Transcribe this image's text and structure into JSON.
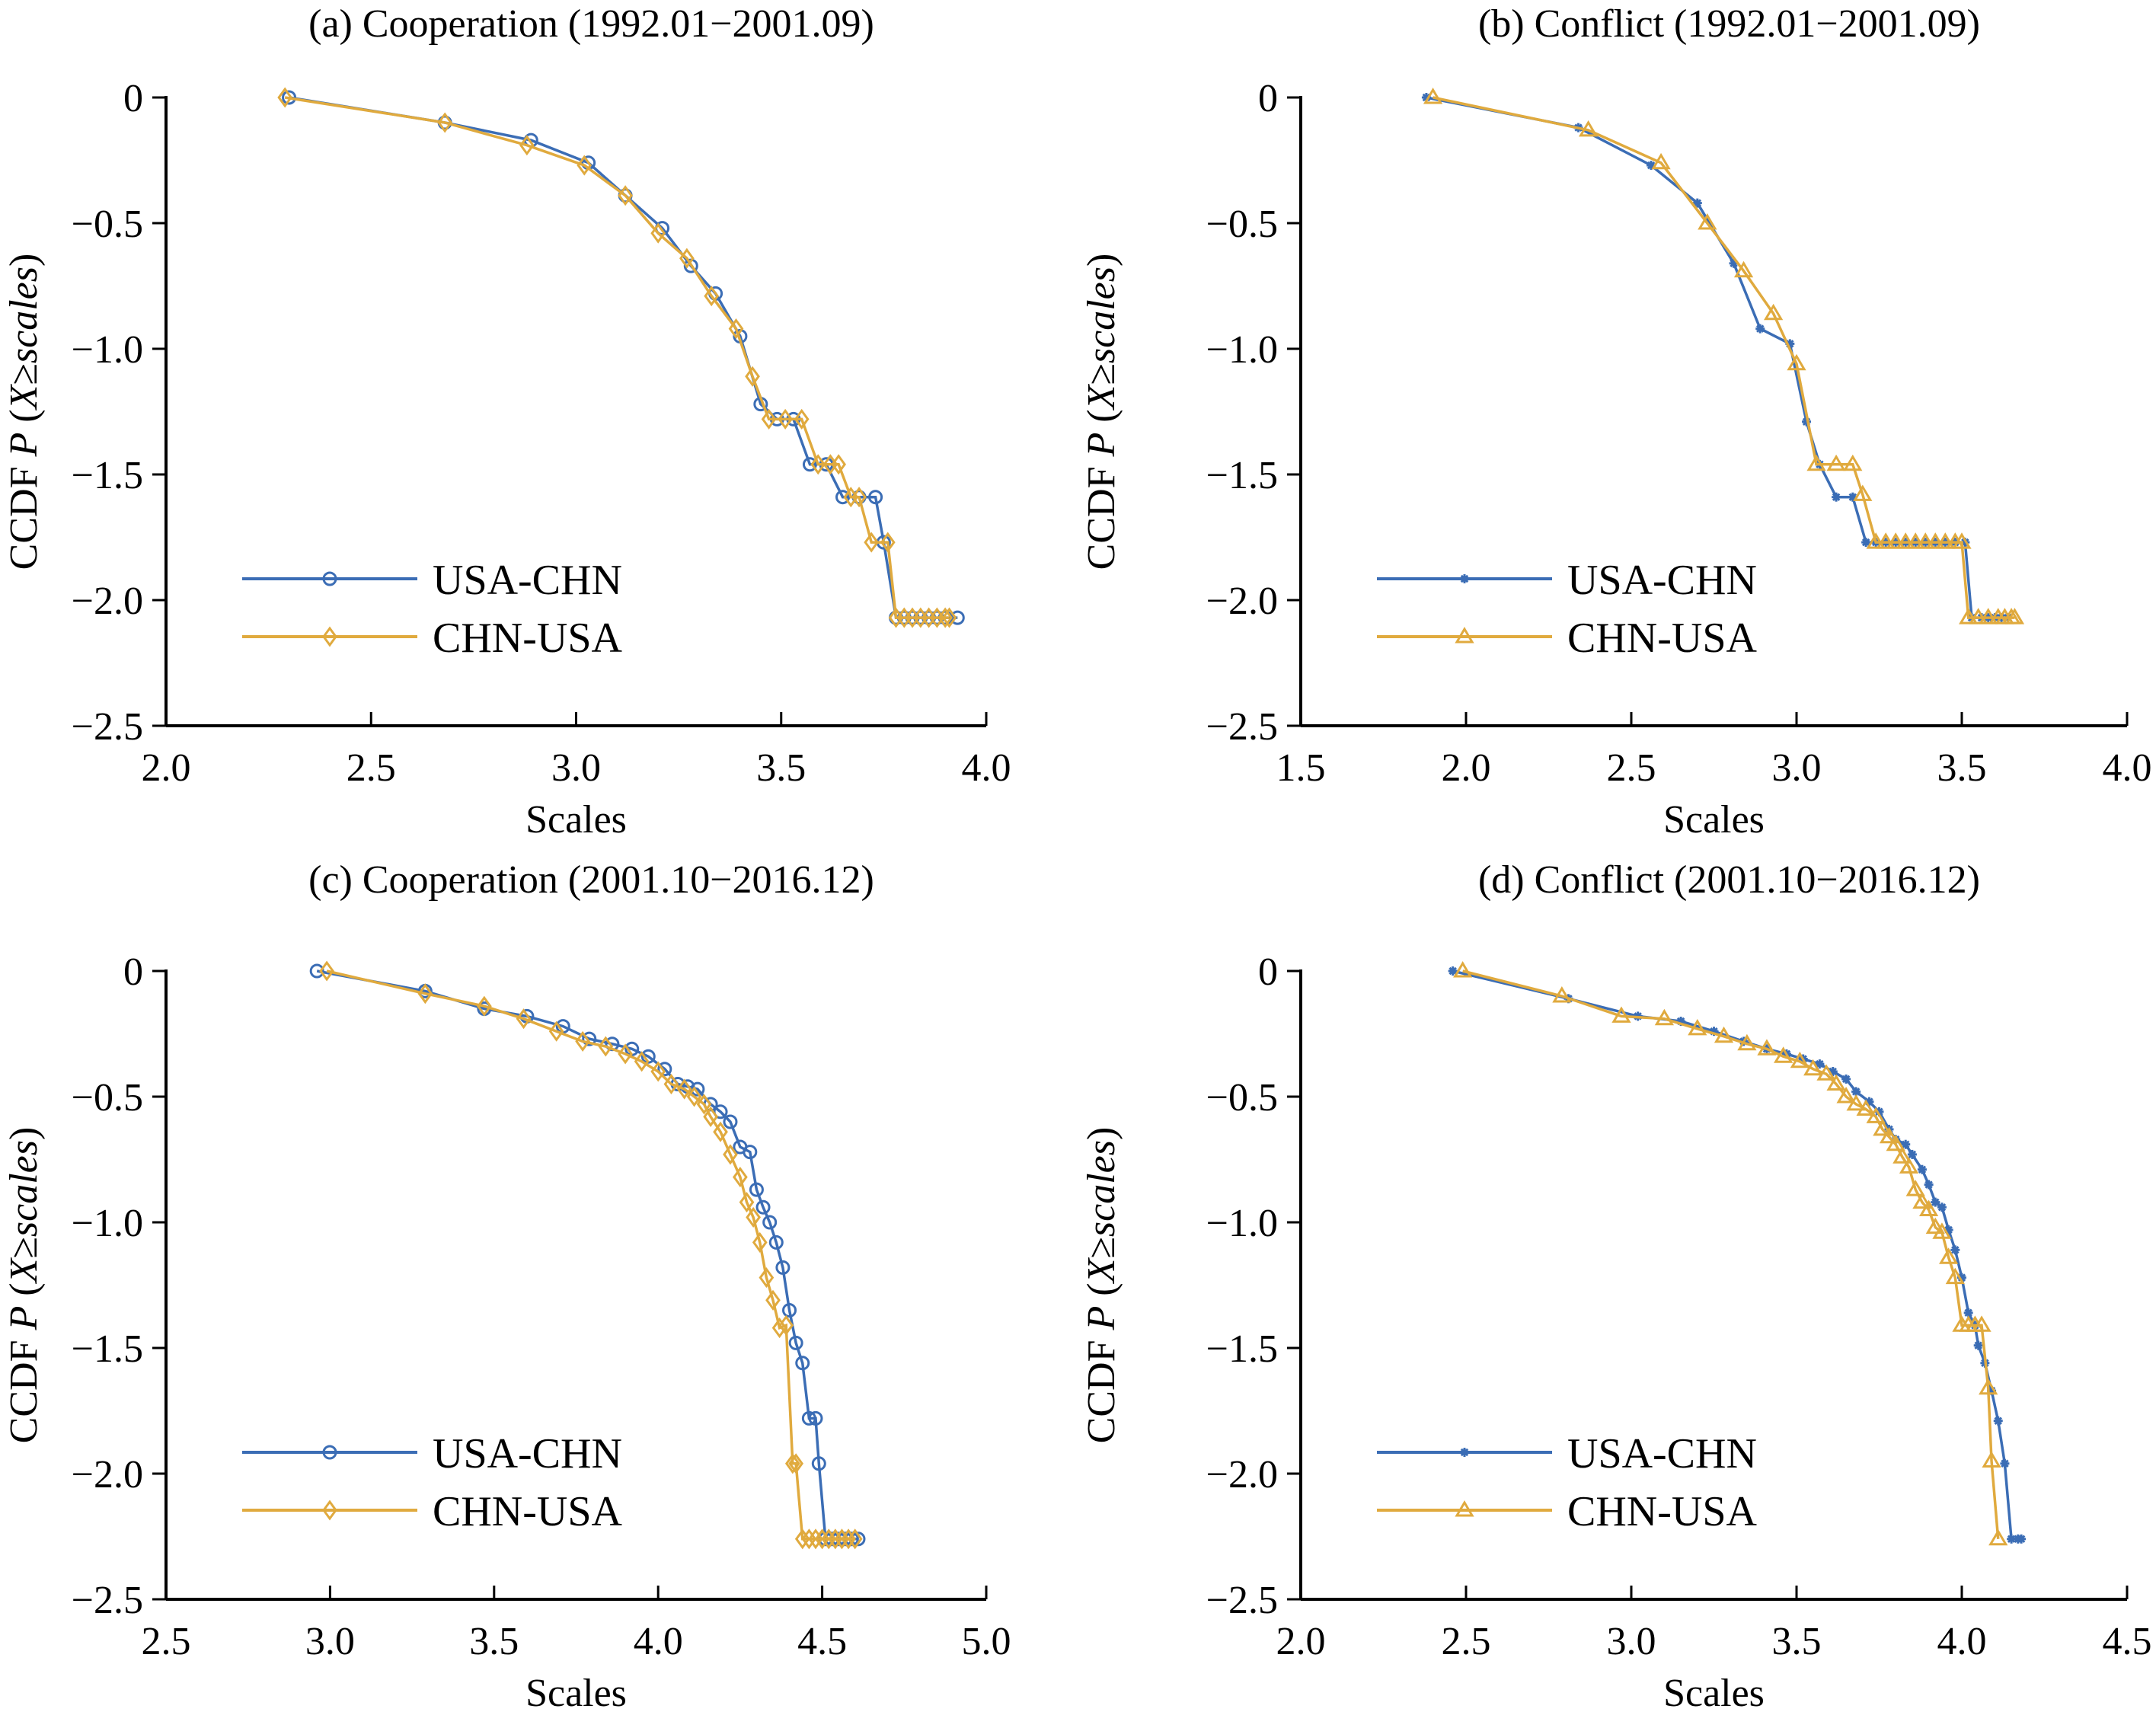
{
  "chart_data": [
    {
      "type": "line",
      "panel": "a",
      "title": "(a) Cooperation (1992.01−2001.09)",
      "xlabel": "Scales",
      "ylabel": "CCDF P (X≥scales)",
      "xlim": [
        2.0,
        4.0
      ],
      "ylim": [
        -2.5,
        0
      ],
      "xticks": [
        "2.0",
        "2.5",
        "3.0",
        "3.5",
        "4.0"
      ],
      "xtick_values": [
        2.0,
        2.5,
        3.0,
        3.5,
        4.0
      ],
      "yticks": [
        "0",
        "−0.5",
        "−1.0",
        "−1.5",
        "−2.0",
        "−2.5"
      ],
      "ytick_values": [
        0,
        -0.5,
        -1.0,
        -1.5,
        -2.0,
        -2.5
      ],
      "legend_position": "lower-left",
      "series": [
        {
          "name": "USA-CHN",
          "color": "#3B6DB5",
          "marker": "circle",
          "x": [
            2.3,
            2.68,
            2.89,
            3.03,
            3.12,
            3.21,
            3.28,
            3.34,
            3.4,
            3.45,
            3.49,
            3.53,
            3.57,
            3.61,
            3.65,
            3.69,
            3.73,
            3.75,
            3.78,
            3.8,
            3.82,
            3.84,
            3.86,
            3.88,
            3.9,
            3.93
          ],
          "y": [
            0,
            -0.1,
            -0.17,
            -0.26,
            -0.39,
            -0.52,
            -0.67,
            -0.78,
            -0.95,
            -1.22,
            -1.28,
            -1.28,
            -1.46,
            -1.46,
            -1.59,
            -1.59,
            -1.59,
            -1.77,
            -2.07,
            -2.07,
            -2.07,
            -2.07,
            -2.07,
            -2.07,
            -2.07,
            -2.07
          ]
        },
        {
          "name": "CHN-USA",
          "color": "#E0AA3E",
          "marker": "diamond",
          "x": [
            2.29,
            2.68,
            2.88,
            3.02,
            3.12,
            3.2,
            3.27,
            3.33,
            3.39,
            3.43,
            3.47,
            3.51,
            3.55,
            3.59,
            3.62,
            3.64,
            3.67,
            3.69,
            3.72,
            3.76,
            3.78,
            3.8,
            3.82,
            3.84,
            3.86,
            3.88,
            3.9,
            3.91
          ],
          "y": [
            0,
            -0.1,
            -0.19,
            -0.27,
            -0.39,
            -0.54,
            -0.64,
            -0.79,
            -0.92,
            -1.11,
            -1.28,
            -1.28,
            -1.28,
            -1.46,
            -1.46,
            -1.46,
            -1.59,
            -1.59,
            -1.77,
            -1.77,
            -2.07,
            -2.07,
            -2.07,
            -2.07,
            -2.07,
            -2.07,
            -2.07,
            -2.07
          ]
        }
      ]
    },
    {
      "type": "line",
      "panel": "b",
      "title": "(b) Conflict (1992.01−2001.09)",
      "xlabel": "Scales",
      "ylabel": "CCDF P (X≥scales)",
      "xlim": [
        1.5,
        4.0
      ],
      "ylim": [
        -2.5,
        0
      ],
      "xticks": [
        "1.5",
        "2.0",
        "2.5",
        "3.0",
        "3.5",
        "4.0"
      ],
      "xtick_values": [
        1.5,
        2.0,
        2.5,
        3.0,
        3.5,
        4.0
      ],
      "yticks": [
        "0",
        "−0.5",
        "−1.0",
        "−1.5",
        "−2.0",
        "−2.5"
      ],
      "ytick_values": [
        0,
        -0.5,
        -1.0,
        -1.5,
        -2.0,
        -2.5
      ],
      "legend_position": "lower-left",
      "series": [
        {
          "name": "USA-CHN",
          "color": "#3B6DB5",
          "marker": "asterisk",
          "x": [
            1.88,
            2.34,
            2.56,
            2.7,
            2.81,
            2.89,
            2.98,
            3.03,
            3.07,
            3.12,
            3.17,
            3.21,
            3.24,
            3.27,
            3.3,
            3.33,
            3.36,
            3.39,
            3.42,
            3.45,
            3.48,
            3.51,
            3.53,
            3.56,
            3.58,
            3.6,
            3.62,
            3.64
          ],
          "y": [
            0,
            -0.12,
            -0.27,
            -0.42,
            -0.66,
            -0.92,
            -0.98,
            -1.29,
            -1.46,
            -1.59,
            -1.59,
            -1.77,
            -1.77,
            -1.77,
            -1.77,
            -1.77,
            -1.77,
            -1.77,
            -1.77,
            -1.77,
            -1.77,
            -1.77,
            -2.07,
            -2.07,
            -2.07,
            -2.07,
            -2.07,
            -2.07
          ]
        },
        {
          "name": "CHN-USA",
          "color": "#E0AA3E",
          "marker": "triangle",
          "x": [
            1.9,
            2.37,
            2.59,
            2.73,
            2.84,
            2.93,
            3.0,
            3.06,
            3.12,
            3.17,
            3.2,
            3.24,
            3.27,
            3.3,
            3.33,
            3.36,
            3.39,
            3.42,
            3.45,
            3.48,
            3.5,
            3.52,
            3.55,
            3.58,
            3.61,
            3.63,
            3.65,
            3.66
          ],
          "y": [
            0,
            -0.13,
            -0.26,
            -0.5,
            -0.69,
            -0.86,
            -1.06,
            -1.46,
            -1.46,
            -1.46,
            -1.58,
            -1.77,
            -1.77,
            -1.77,
            -1.77,
            -1.77,
            -1.77,
            -1.77,
            -1.77,
            -1.77,
            -1.77,
            -2.07,
            -2.07,
            -2.07,
            -2.07,
            -2.07,
            -2.07,
            -2.07
          ]
        }
      ]
    },
    {
      "type": "line",
      "panel": "c",
      "title": "(c) Cooperation (2001.10−2016.12)",
      "xlabel": "Scales",
      "ylabel": "CCDF P (X≥scales)",
      "xlim": [
        2.5,
        5.0
      ],
      "ylim": [
        -2.5,
        0
      ],
      "xticks": [
        "2.5",
        "3.0",
        "3.5",
        "4.0",
        "4.5",
        "5.0"
      ],
      "xtick_values": [
        2.5,
        3.0,
        3.5,
        4.0,
        4.5,
        5.0
      ],
      "yticks": [
        "0",
        "−0.5",
        "−1.0",
        "−1.5",
        "−2.0",
        "−2.5"
      ],
      "ytick_values": [
        0,
        -0.5,
        -1.0,
        -1.5,
        -2.0,
        -2.5
      ],
      "legend_position": "lower-left",
      "series": [
        {
          "name": "USA-CHN",
          "color": "#3B6DB5",
          "marker": "circle",
          "x": [
            2.96,
            3.29,
            3.47,
            3.6,
            3.71,
            3.79,
            3.86,
            3.92,
            3.97,
            4.02,
            4.06,
            4.09,
            4.12,
            4.16,
            4.19,
            4.22,
            4.25,
            4.28,
            4.3,
            4.32,
            4.34,
            4.36,
            4.38,
            4.4,
            4.42,
            4.44,
            4.46,
            4.48,
            4.49,
            4.51,
            4.53,
            4.55,
            4.57,
            4.59,
            4.61
          ],
          "y": [
            0,
            -0.08,
            -0.15,
            -0.18,
            -0.22,
            -0.27,
            -0.29,
            -0.31,
            -0.34,
            -0.39,
            -0.45,
            -0.46,
            -0.47,
            -0.53,
            -0.56,
            -0.6,
            -0.7,
            -0.72,
            -0.87,
            -0.94,
            -1.0,
            -1.08,
            -1.18,
            -1.35,
            -1.48,
            -1.56,
            -1.78,
            -1.78,
            -1.96,
            -2.26,
            -2.26,
            -2.26,
            -2.26,
            -2.26,
            -2.26
          ]
        },
        {
          "name": "CHN-USA",
          "color": "#E0AA3E",
          "marker": "diamond",
          "x": [
            2.99,
            3.29,
            3.47,
            3.59,
            3.69,
            3.77,
            3.84,
            3.9,
            3.95,
            4.0,
            4.04,
            4.08,
            4.11,
            4.14,
            4.16,
            4.19,
            4.22,
            4.25,
            4.27,
            4.29,
            4.31,
            4.33,
            4.35,
            4.37,
            4.39,
            4.41,
            4.42,
            4.44,
            4.46,
            4.48,
            4.5,
            4.52,
            4.54,
            4.56,
            4.58,
            4.6
          ],
          "y": [
            0,
            -0.09,
            -0.14,
            -0.19,
            -0.24,
            -0.28,
            -0.3,
            -0.33,
            -0.36,
            -0.4,
            -0.45,
            -0.47,
            -0.5,
            -0.53,
            -0.58,
            -0.64,
            -0.73,
            -0.82,
            -0.92,
            -0.98,
            -1.08,
            -1.22,
            -1.31,
            -1.42,
            -1.41,
            -1.96,
            -1.96,
            -2.26,
            -2.26,
            -2.26,
            -2.26,
            -2.26,
            -2.26,
            -2.26,
            -2.26,
            -2.26
          ]
        }
      ]
    },
    {
      "type": "line",
      "panel": "d",
      "title": "(d) Conflict (2001.10−2016.12)",
      "xlabel": "Scales",
      "ylabel": "CCDF P (X≥scales)",
      "xlim": [
        2.0,
        4.5
      ],
      "ylim": [
        -2.5,
        0
      ],
      "xticks": [
        "2.0",
        "2.5",
        "3.0",
        "3.5",
        "4.0",
        "4.5"
      ],
      "xtick_values": [
        2.0,
        2.5,
        3.0,
        3.5,
        4.0,
        4.5
      ],
      "yticks": [
        "0",
        "−0.5",
        "−1.0",
        "−1.5",
        "−2.0",
        "−2.5"
      ],
      "ytick_values": [
        0,
        -0.5,
        -1.0,
        -1.5,
        -2.0,
        -2.5
      ],
      "legend_position": "lower-left",
      "series": [
        {
          "name": "USA-CHN",
          "color": "#3B6DB5",
          "marker": "asterisk",
          "x": [
            2.46,
            2.81,
            3.02,
            3.15,
            3.25,
            3.34,
            3.41,
            3.47,
            3.52,
            3.57,
            3.61,
            3.65,
            3.68,
            3.72,
            3.75,
            3.78,
            3.8,
            3.83,
            3.85,
            3.88,
            3.9,
            3.92,
            3.94,
            3.96,
            3.98,
            4.0,
            4.02,
            4.04,
            4.05,
            4.07,
            4.09,
            4.11,
            4.13,
            4.15,
            4.17,
            4.18
          ],
          "y": [
            0,
            -0.11,
            -0.18,
            -0.2,
            -0.24,
            -0.28,
            -0.31,
            -0.33,
            -0.35,
            -0.37,
            -0.4,
            -0.43,
            -0.48,
            -0.52,
            -0.56,
            -0.63,
            -0.67,
            -0.69,
            -0.73,
            -0.79,
            -0.85,
            -0.92,
            -0.94,
            -1.03,
            -1.11,
            -1.22,
            -1.36,
            -1.41,
            -1.49,
            -1.56,
            -1.67,
            -1.79,
            -1.96,
            -2.26,
            -2.26,
            -2.26
          ]
        },
        {
          "name": "CHN-USA",
          "color": "#E0AA3E",
          "marker": "triangle",
          "x": [
            2.49,
            2.79,
            2.97,
            3.1,
            3.2,
            3.28,
            3.35,
            3.41,
            3.46,
            3.51,
            3.55,
            3.59,
            3.62,
            3.65,
            3.68,
            3.71,
            3.74,
            3.76,
            3.78,
            3.8,
            3.82,
            3.84,
            3.86,
            3.88,
            3.9,
            3.92,
            3.94,
            3.96,
            3.98,
            4.0,
            4.02,
            4.04,
            4.06,
            4.08,
            4.09,
            4.11
          ],
          "y": [
            0,
            -0.1,
            -0.18,
            -0.19,
            -0.23,
            -0.26,
            -0.29,
            -0.31,
            -0.34,
            -0.36,
            -0.39,
            -0.41,
            -0.45,
            -0.5,
            -0.53,
            -0.55,
            -0.58,
            -0.63,
            -0.66,
            -0.69,
            -0.74,
            -0.78,
            -0.87,
            -0.92,
            -0.95,
            -1.02,
            -1.04,
            -1.14,
            -1.22,
            -1.41,
            -1.41,
            -1.41,
            -1.41,
            -1.66,
            -1.95,
            -2.26
          ]
        }
      ]
    }
  ]
}
